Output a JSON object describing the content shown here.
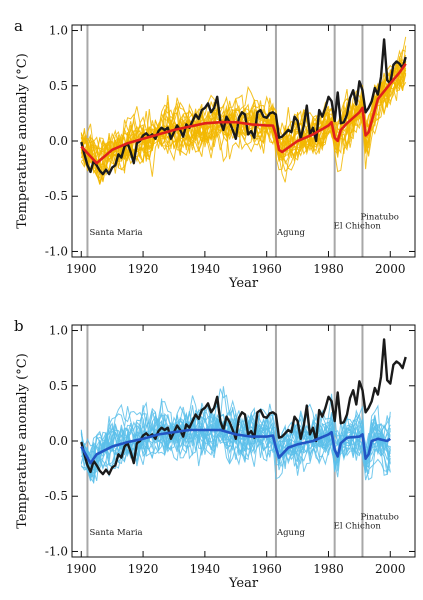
{
  "chart_data": [
    {
      "panel": "a",
      "type": "line",
      "xlabel": "Year",
      "ylabel": "Temperature anomaly (°C)",
      "xlim": [
        1897,
        2008
      ],
      "ylim": [
        -1.05,
        1.05
      ],
      "xticks": [
        1900,
        1920,
        1940,
        1960,
        1980,
        2000
      ],
      "yticks": [
        -1.0,
        -0.5,
        0.0,
        0.5,
        1.0
      ],
      "ensemble_color": "#f2b700",
      "mean_color": "#e0201b",
      "obs_color": "#1a1a1a",
      "volcanoes": [
        {
          "name": "Santa Maria",
          "year": 1902
        },
        {
          "name": "Agung",
          "year": 1963
        },
        {
          "name": "El Chichon",
          "year": 1982
        },
        {
          "name": "Pinatubo",
          "year": 1991
        }
      ],
      "series": [
        {
          "role": "observations",
          "x": [
            1900,
            1901,
            1902,
            1903,
            1904,
            1905,
            1906,
            1907,
            1908,
            1909,
            1910,
            1911,
            1912,
            1913,
            1914,
            1915,
            1916,
            1917,
            1918,
            1919,
            1920,
            1921,
            1922,
            1923,
            1924,
            1925,
            1926,
            1927,
            1928,
            1929,
            1930,
            1931,
            1932,
            1933,
            1934,
            1935,
            1936,
            1937,
            1938,
            1939,
            1940,
            1941,
            1942,
            1943,
            1944,
            1945,
            1946,
            1947,
            1948,
            1949,
            1950,
            1951,
            1952,
            1953,
            1954,
            1955,
            1956,
            1957,
            1958,
            1959,
            1960,
            1961,
            1962,
            1963,
            1964,
            1965,
            1966,
            1967,
            1968,
            1969,
            1970,
            1971,
            1972,
            1973,
            1974,
            1975,
            1976,
            1977,
            1978,
            1979,
            1980,
            1981,
            1982,
            1983,
            1984,
            1985,
            1986,
            1987,
            1988,
            1989,
            1990,
            1991,
            1992,
            1993,
            1994,
            1995,
            1996,
            1997,
            1998,
            1999,
            2000,
            2001,
            2002,
            2003,
            2004,
            2005
          ],
          "values": [
            -0.01,
            -0.12,
            -0.22,
            -0.28,
            -0.18,
            -0.22,
            -0.27,
            -0.3,
            -0.26,
            -0.3,
            -0.24,
            -0.22,
            -0.12,
            -0.15,
            -0.05,
            -0.02,
            -0.1,
            -0.2,
            -0.02,
            0.0,
            0.05,
            0.07,
            0.04,
            0.06,
            0.02,
            0.09,
            0.12,
            0.1,
            0.12,
            0.02,
            0.08,
            0.14,
            0.1,
            0.04,
            0.15,
            0.12,
            0.18,
            0.24,
            0.2,
            0.28,
            0.3,
            0.34,
            0.26,
            0.3,
            0.4,
            0.18,
            0.1,
            0.22,
            0.17,
            0.1,
            0.02,
            0.21,
            0.26,
            0.24,
            0.06,
            0.09,
            0.03,
            0.26,
            0.28,
            0.22,
            0.21,
            0.25,
            0.26,
            0.24,
            0.03,
            0.04,
            0.07,
            0.1,
            0.08,
            0.22,
            0.18,
            0.02,
            0.14,
            0.32,
            0.06,
            0.12,
            0.0,
            0.28,
            0.22,
            0.3,
            0.4,
            0.36,
            0.18,
            0.44,
            0.16,
            0.17,
            0.24,
            0.39,
            0.46,
            0.33,
            0.54,
            0.46,
            0.26,
            0.3,
            0.36,
            0.48,
            0.42,
            0.58,
            0.92,
            0.55,
            0.52,
            0.69,
            0.72,
            0.7,
            0.66,
            0.76
          ]
        },
        {
          "role": "ensemble-mean",
          "x": [
            1900,
            1905,
            1910,
            1915,
            1920,
            1925,
            1930,
            1935,
            1940,
            1945,
            1950,
            1955,
            1960,
            1962,
            1963,
            1964,
            1965,
            1967,
            1970,
            1975,
            1980,
            1981,
            1982,
            1983,
            1984,
            1986,
            1990,
            1991,
            1992,
            1993,
            1994,
            1996,
            2000,
            2003,
            2005
          ],
          "values": [
            -0.05,
            -0.2,
            -0.08,
            -0.02,
            0.02,
            0.06,
            0.1,
            0.13,
            0.16,
            0.17,
            0.17,
            0.15,
            0.14,
            0.14,
            0.06,
            -0.08,
            -0.1,
            -0.06,
            0.0,
            0.06,
            0.14,
            0.17,
            0.03,
            0.0,
            0.1,
            0.16,
            0.26,
            0.3,
            0.05,
            0.08,
            0.18,
            0.38,
            0.52,
            0.62,
            0.7
          ]
        }
      ]
    },
    {
      "panel": "b",
      "type": "line",
      "xlabel": "Year",
      "ylabel": "Temperature anomaly (°C)",
      "xlim": [
        1897,
        2008
      ],
      "ylim": [
        -1.05,
        1.05
      ],
      "xticks": [
        1900,
        1920,
        1940,
        1960,
        1980,
        2000
      ],
      "yticks": [
        -1.0,
        -0.5,
        0.0,
        0.5,
        1.0
      ],
      "ensemble_color": "#5cc0ea",
      "mean_color": "#2255c4",
      "obs_color": "#1a1a1a",
      "volcanoes": [
        {
          "name": "Santa Maria",
          "year": 1902
        },
        {
          "name": "Agung",
          "year": 1963
        },
        {
          "name": "El Chichon",
          "year": 1982
        },
        {
          "name": "Pinatubo",
          "year": 1991
        }
      ],
      "series": [
        {
          "role": "observations",
          "x": [
            1900,
            1901,
            1902,
            1903,
            1904,
            1905,
            1906,
            1907,
            1908,
            1909,
            1910,
            1911,
            1912,
            1913,
            1914,
            1915,
            1916,
            1917,
            1918,
            1919,
            1920,
            1921,
            1922,
            1923,
            1924,
            1925,
            1926,
            1927,
            1928,
            1929,
            1930,
            1931,
            1932,
            1933,
            1934,
            1935,
            1936,
            1937,
            1938,
            1939,
            1940,
            1941,
            1942,
            1943,
            1944,
            1945,
            1946,
            1947,
            1948,
            1949,
            1950,
            1951,
            1952,
            1953,
            1954,
            1955,
            1956,
            1957,
            1958,
            1959,
            1960,
            1961,
            1962,
            1963,
            1964,
            1965,
            1966,
            1967,
            1968,
            1969,
            1970,
            1971,
            1972,
            1973,
            1974,
            1975,
            1976,
            1977,
            1978,
            1979,
            1980,
            1981,
            1982,
            1983,
            1984,
            1985,
            1986,
            1987,
            1988,
            1989,
            1990,
            1991,
            1992,
            1993,
            1994,
            1995,
            1996,
            1997,
            1998,
            1999,
            2000,
            2001,
            2002,
            2003,
            2004,
            2005
          ],
          "values": [
            -0.01,
            -0.12,
            -0.22,
            -0.28,
            -0.18,
            -0.22,
            -0.27,
            -0.3,
            -0.26,
            -0.3,
            -0.24,
            -0.22,
            -0.12,
            -0.15,
            -0.05,
            -0.02,
            -0.1,
            -0.2,
            -0.02,
            0.0,
            0.05,
            0.07,
            0.04,
            0.06,
            0.02,
            0.09,
            0.12,
            0.1,
            0.12,
            0.02,
            0.08,
            0.14,
            0.1,
            0.04,
            0.15,
            0.12,
            0.18,
            0.24,
            0.2,
            0.28,
            0.3,
            0.34,
            0.26,
            0.3,
            0.4,
            0.18,
            0.1,
            0.22,
            0.17,
            0.1,
            0.02,
            0.21,
            0.26,
            0.24,
            0.06,
            0.09,
            0.03,
            0.26,
            0.28,
            0.22,
            0.21,
            0.25,
            0.26,
            0.24,
            0.03,
            0.04,
            0.07,
            0.1,
            0.08,
            0.22,
            0.18,
            0.02,
            0.14,
            0.32,
            0.06,
            0.12,
            0.0,
            0.28,
            0.22,
            0.3,
            0.4,
            0.36,
            0.18,
            0.44,
            0.16,
            0.17,
            0.24,
            0.39,
            0.46,
            0.33,
            0.54,
            0.46,
            0.26,
            0.3,
            0.36,
            0.48,
            0.42,
            0.58,
            0.92,
            0.55,
            0.52,
            0.69,
            0.72,
            0.7,
            0.66,
            0.76
          ]
        },
        {
          "role": "ensemble-mean",
          "x": [
            1900,
            1903,
            1905,
            1910,
            1915,
            1920,
            1925,
            1930,
            1935,
            1940,
            1945,
            1950,
            1955,
            1960,
            1962,
            1963,
            1964,
            1965,
            1967,
            1970,
            1975,
            1980,
            1981,
            1982,
            1983,
            1984,
            1986,
            1990,
            1991,
            1992,
            1993,
            1994,
            1996,
            1999,
            2000
          ],
          "values": [
            -0.05,
            -0.2,
            -0.12,
            -0.05,
            -0.01,
            0.02,
            0.06,
            0.08,
            0.1,
            0.1,
            0.1,
            0.06,
            0.04,
            0.04,
            0.05,
            -0.06,
            -0.15,
            -0.12,
            -0.06,
            -0.03,
            0.0,
            0.06,
            0.08,
            -0.08,
            -0.14,
            -0.02,
            0.03,
            0.04,
            0.06,
            -0.16,
            -0.12,
            0.0,
            0.02,
            0.0,
            0.02
          ]
        }
      ]
    }
  ]
}
